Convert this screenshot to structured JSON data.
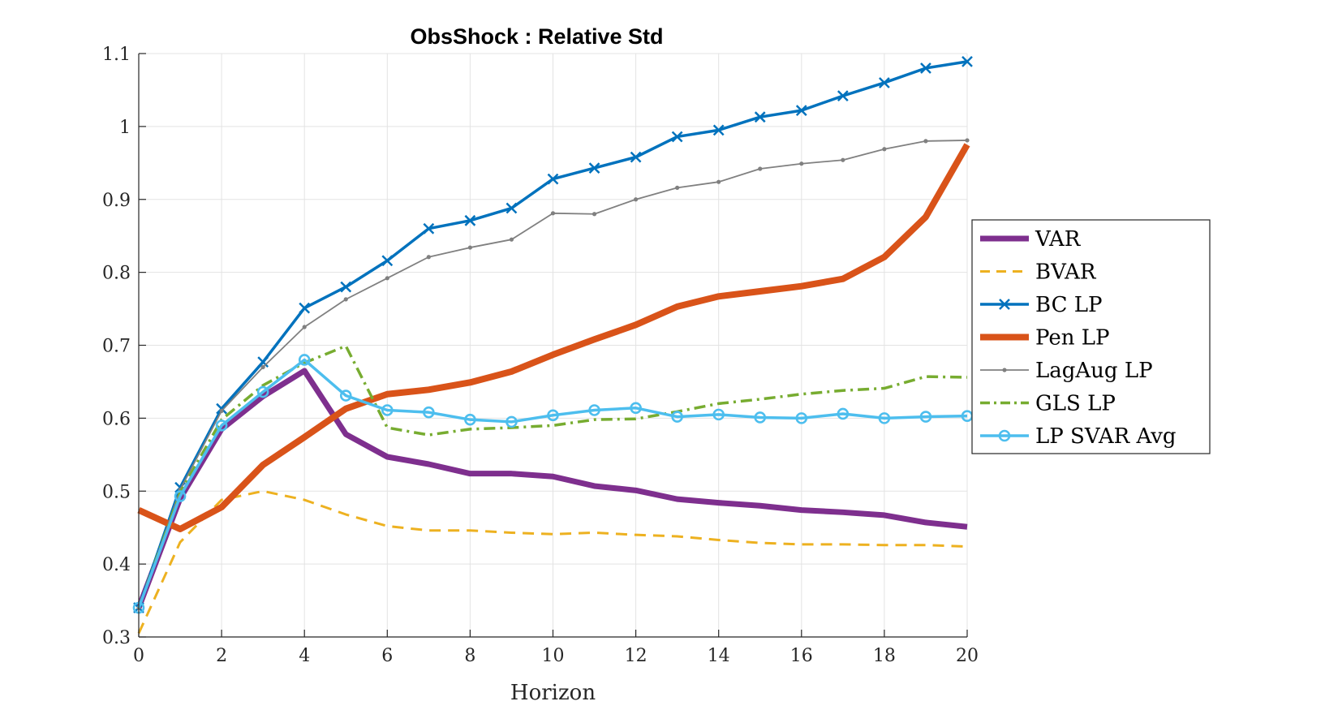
{
  "chart_data": {
    "type": "line",
    "title": "ObsShock : Relative Std",
    "xlabel": "Horizon",
    "ylabel": "",
    "xlim": [
      0,
      20
    ],
    "ylim": [
      0.3,
      1.1
    ],
    "xticks": [
      "0",
      "2",
      "4",
      "6",
      "8",
      "10",
      "12",
      "14",
      "16",
      "18",
      "20"
    ],
    "yticks": [
      "0.3",
      "0.4",
      "0.5",
      "0.6",
      "0.7",
      "0.8",
      "0.9",
      "1",
      "1.1"
    ],
    "xtick_values": [
      0,
      2,
      4,
      6,
      8,
      10,
      12,
      14,
      16,
      18,
      20
    ],
    "ytick_values": [
      0.3,
      0.4,
      0.5,
      0.6,
      0.7,
      0.8,
      0.9,
      1.0,
      1.1
    ],
    "grid": true,
    "legend_position": "right",
    "x": [
      0,
      1,
      2,
      3,
      4,
      5,
      6,
      7,
      8,
      9,
      10,
      11,
      12,
      13,
      14,
      15,
      16,
      17,
      18,
      19,
      20
    ],
    "series": [
      {
        "name": "VAR",
        "color": "#7e2f8e",
        "style": "solid",
        "width": 7,
        "marker": "none",
        "values": [
          0.34,
          0.49,
          0.585,
          0.63,
          0.665,
          0.578,
          0.547,
          0.537,
          0.524,
          0.524,
          0.52,
          0.507,
          0.501,
          0.489,
          0.484,
          0.48,
          0.474,
          0.471,
          0.467,
          0.457,
          0.451
        ]
      },
      {
        "name": "BVAR",
        "color": "#edb120",
        "style": "dashed",
        "width": 3,
        "marker": "none",
        "values": [
          0.305,
          0.43,
          0.488,
          0.5,
          0.488,
          0.468,
          0.452,
          0.446,
          0.446,
          0.443,
          0.441,
          0.443,
          0.44,
          0.438,
          0.433,
          0.429,
          0.427,
          0.427,
          0.426,
          0.426,
          0.424
        ]
      },
      {
        "name": "BC LP",
        "color": "#0072bd",
        "style": "solid",
        "width": 3.5,
        "marker": "x",
        "values": [
          0.34,
          0.505,
          0.613,
          0.677,
          0.751,
          0.78,
          0.816,
          0.86,
          0.871,
          0.888,
          0.928,
          0.943,
          0.958,
          0.986,
          0.995,
          1.013,
          1.022,
          1.042,
          1.06,
          1.08,
          1.089
        ]
      },
      {
        "name": "Pen LP",
        "color": "#d95319",
        "style": "solid",
        "width": 8,
        "marker": "none",
        "values": [
          0.474,
          0.448,
          0.478,
          0.536,
          0.574,
          0.613,
          0.633,
          0.639,
          0.649,
          0.664,
          0.687,
          0.708,
          0.728,
          0.753,
          0.767,
          0.774,
          0.781,
          0.791,
          0.821,
          0.876,
          0.975
        ]
      },
      {
        "name": "LagAug LP",
        "color": "#808080",
        "style": "solid",
        "width": 1.8,
        "marker": "dot",
        "values": [
          0.34,
          0.502,
          0.61,
          0.67,
          0.725,
          0.763,
          0.792,
          0.821,
          0.834,
          0.845,
          0.881,
          0.88,
          0.9,
          0.916,
          0.924,
          0.942,
          0.949,
          0.954,
          0.969,
          0.98,
          0.981
        ]
      },
      {
        "name": "GLS LP",
        "color": "#77ac30",
        "style": "dashdot",
        "width": 3.5,
        "marker": "none",
        "values": [
          0.34,
          0.498,
          0.598,
          0.645,
          0.676,
          0.699,
          0.587,
          0.577,
          0.585,
          0.587,
          0.59,
          0.598,
          0.599,
          0.609,
          0.62,
          0.626,
          0.633,
          0.638,
          0.641,
          0.657,
          0.656
        ]
      },
      {
        "name": "LP SVAR Avg",
        "color": "#4dbeee",
        "style": "solid",
        "width": 3.5,
        "marker": "o",
        "values": [
          0.34,
          0.493,
          0.59,
          0.636,
          0.68,
          0.631,
          0.611,
          0.608,
          0.598,
          0.595,
          0.604,
          0.611,
          0.614,
          0.602,
          0.605,
          0.601,
          0.6,
          0.606,
          0.6,
          0.602,
          0.603
        ]
      }
    ]
  }
}
